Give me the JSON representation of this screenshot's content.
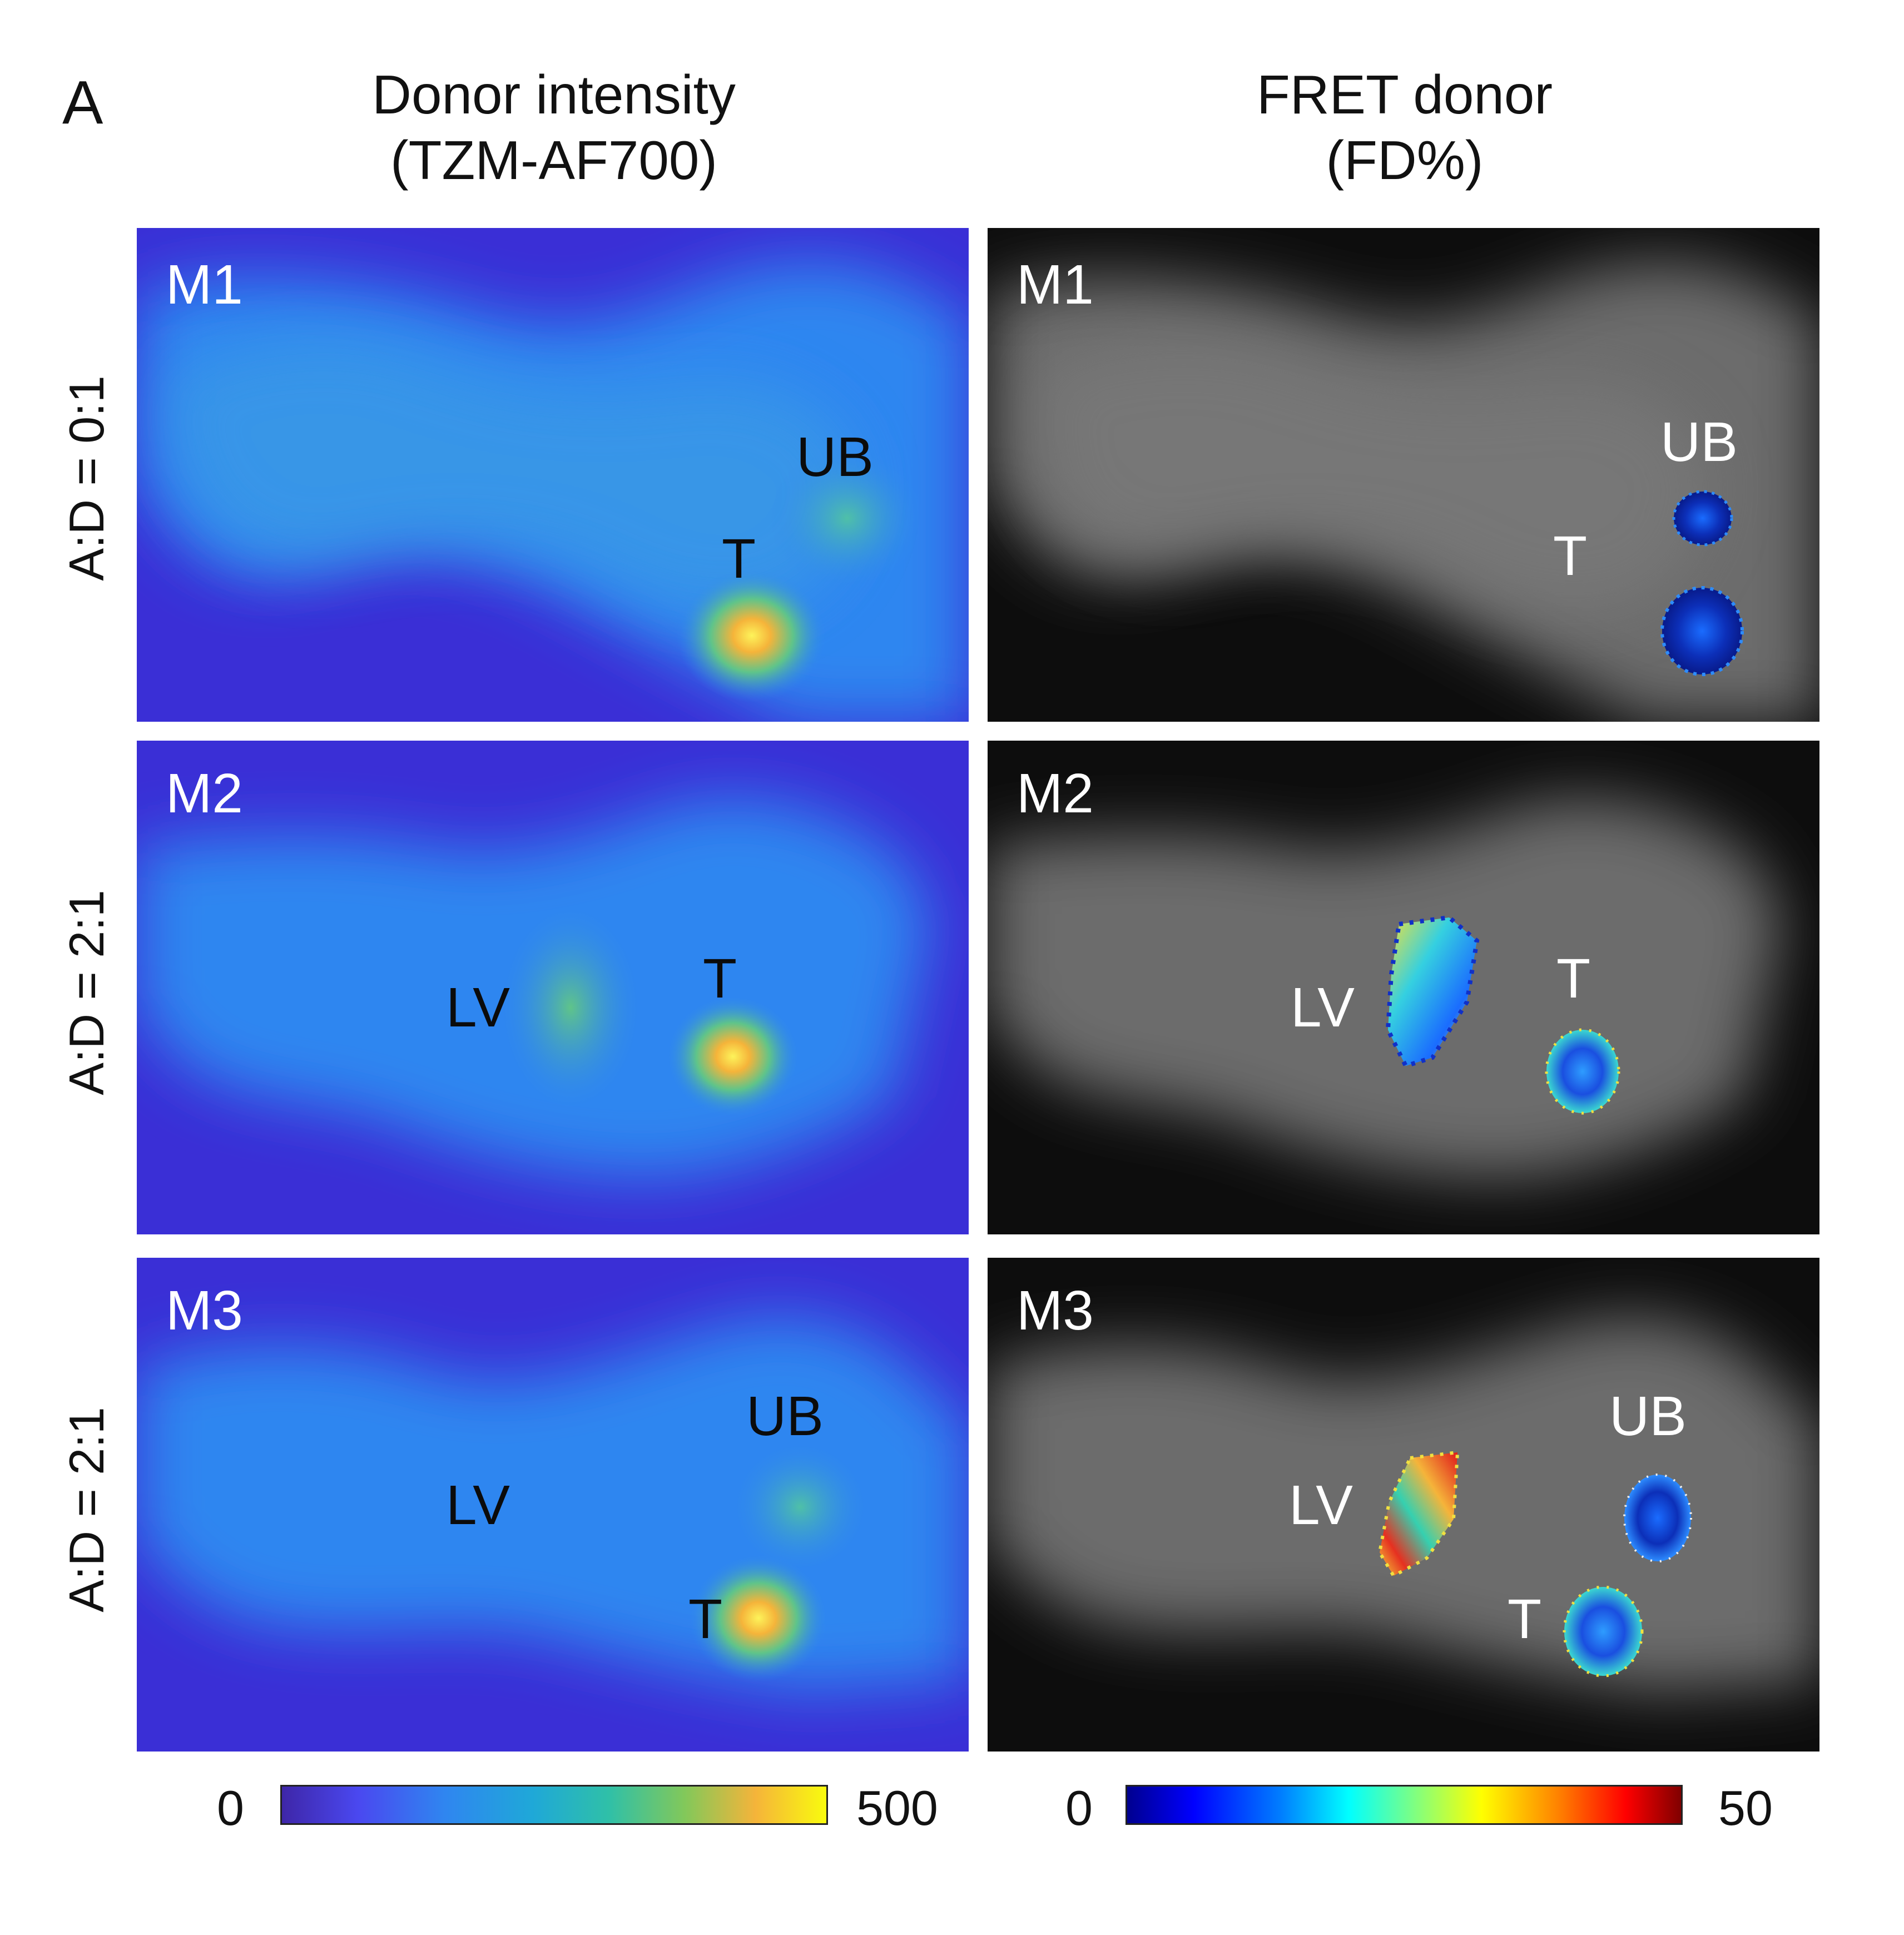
{
  "figure": {
    "panel_label": "A",
    "columns": [
      {
        "title_line1": "Donor intensity",
        "title_line2": "(TZM-AF700)"
      },
      {
        "title_line1": "FRET donor",
        "title_line2": "(FD%)"
      }
    ],
    "rows": [
      {
        "label": "A:D = 0:1"
      },
      {
        "label": "A:D = 2:1"
      },
      {
        "label": "A:D = 2:1"
      }
    ],
    "tiles": {
      "r1c1": {
        "mouse": "M1",
        "ub": "UB",
        "t": "T"
      },
      "r1c2": {
        "mouse": "M1",
        "ub": "UB",
        "t": "T"
      },
      "r2c1": {
        "mouse": "M2",
        "lv": "LV",
        "t": "T"
      },
      "r2c2": {
        "mouse": "M2",
        "lv": "LV",
        "t": "T"
      },
      "r3c1": {
        "mouse": "M3",
        "ub": "UB",
        "lv": "LV",
        "t": "T"
      },
      "r3c2": {
        "mouse": "M3",
        "ub": "UB",
        "lv": "LV",
        "t": "T"
      }
    },
    "colorbars": [
      {
        "min_label": "0",
        "max_label": "500",
        "colormap": "parula"
      },
      {
        "min_label": "0",
        "max_label": "50",
        "colormap": "jet"
      }
    ],
    "colors": {
      "intensity_background": "#3a2fd6",
      "intensity_body": "#2f86f0",
      "intensity_hotspot": "#f7d23a",
      "fret_background": "#0d0d0d",
      "fret_body": "#6c6c6c"
    }
  }
}
